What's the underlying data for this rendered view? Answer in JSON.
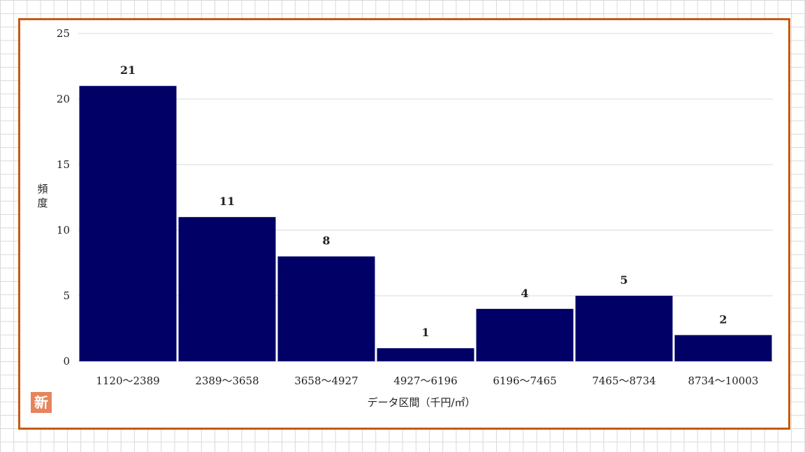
{
  "chart_data": {
    "type": "bar",
    "categories": [
      "1120～2389",
      "2389～3658",
      "3658～4927",
      "4927～6196",
      "6196～7465",
      "7465～8734",
      "8734～10003"
    ],
    "values": [
      21,
      11,
      8,
      1,
      4,
      5,
      2
    ],
    "title": "",
    "xlabel": "データ区間（千円/㎡）",
    "ylabel": "頻度",
    "ylim": [
      0,
      25
    ],
    "yticks": [
      0,
      5,
      10,
      15,
      20,
      25
    ],
    "grid": true,
    "legend": "none",
    "bar_color": "#000066"
  },
  "badge": {
    "text": "新"
  },
  "colors": {
    "frame": "#c55a11",
    "grid": "#d9d9d9",
    "badge": "#e6845c"
  }
}
